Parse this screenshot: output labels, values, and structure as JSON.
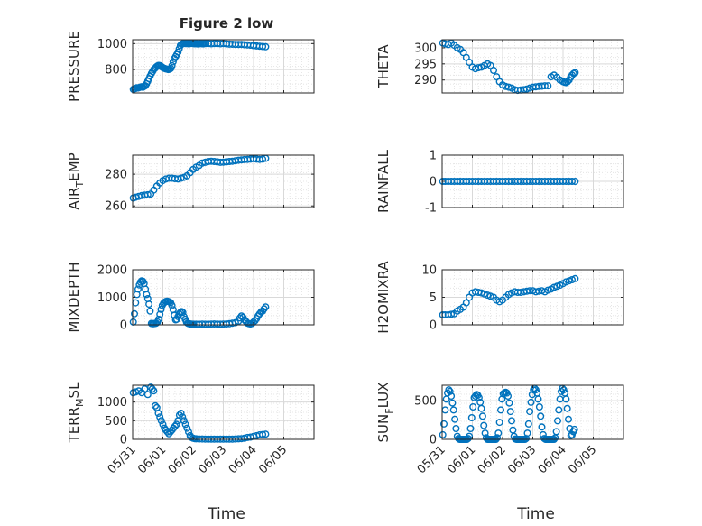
{
  "figure": {
    "title": "Figure 2 low",
    "xlabel": "Time",
    "marker_color": "#0072BD",
    "grid_color": "#d9d9d9",
    "axis_color": "#262626"
  },
  "chart_data": [
    {
      "type": "scatter",
      "ylabel": "PRESSURE",
      "ylim": [
        620,
        1030
      ],
      "yticks": [
        800,
        1000
      ],
      "xlim": [
        0,
        6
      ],
      "show_xticklabels": false,
      "grid": true,
      "x": [
        0.02,
        0.06,
        0.1,
        0.14,
        0.18,
        0.22,
        0.26,
        0.3,
        0.34,
        0.38,
        0.42,
        0.46,
        0.5,
        0.54,
        0.58,
        0.62,
        0.66,
        0.7,
        0.74,
        0.78,
        0.82,
        0.86,
        0.9,
        0.94,
        0.98,
        1.02,
        1.06,
        1.1,
        1.14,
        1.18,
        1.22,
        1.26,
        1.3,
        1.34,
        1.38,
        1.42,
        1.46,
        1.5,
        1.54,
        1.58,
        1.62,
        1.66,
        1.7,
        1.74,
        1.78,
        1.82,
        1.86,
        1.9,
        1.94,
        1.98,
        2.02,
        2.06,
        2.1,
        2.14,
        2.18,
        2.22,
        2.26,
        2.3,
        2.34,
        2.38,
        2.42,
        2.5,
        2.6,
        2.7,
        2.8,
        2.9,
        3.0,
        3.1,
        3.2,
        3.3,
        3.4,
        3.5,
        3.6,
        3.7,
        3.8,
        3.9,
        4.0,
        4.1,
        4.2,
        4.3,
        4.4
      ],
      "y": [
        648,
        652,
        655,
        660,
        658,
        662,
        665,
        668,
        664,
        670,
        675,
        690,
        710,
        730,
        750,
        770,
        785,
        800,
        810,
        820,
        828,
        832,
        830,
        825,
        818,
        812,
        808,
        805,
        803,
        800,
        802,
        808,
        830,
        860,
        885,
        900,
        915,
        935,
        960,
        985,
        995,
        1000,
        1002,
        1000,
        1001,
        1000,
        999,
        1000,
        1002,
        1001,
        1000,
        999,
        1000,
        998,
        997,
        1000,
        1001,
        999,
        998,
        1000,
        1001,
        1000,
        999,
        1000,
        1000,
        999,
        1000,
        998,
        996,
        995,
        994,
        993,
        994,
        992,
        990,
        988,
        985,
        982,
        980,
        978,
        976
      ]
    },
    {
      "type": "scatter",
      "ylabel": "THETA",
      "ylim": [
        286,
        302.5
      ],
      "yticks": [
        290,
        295,
        300
      ],
      "xlim": [
        0,
        6
      ],
      "show_xticklabels": false,
      "grid": true,
      "x": [
        0.02,
        0.1,
        0.2,
        0.3,
        0.4,
        0.5,
        0.6,
        0.7,
        0.8,
        0.9,
        1.0,
        1.1,
        1.2,
        1.3,
        1.4,
        1.5,
        1.6,
        1.7,
        1.8,
        1.9,
        2.0,
        2.1,
        2.2,
        2.3,
        2.4,
        2.5,
        2.6,
        2.7,
        2.8,
        2.9,
        3.0,
        3.1,
        3.2,
        3.3,
        3.4,
        3.5,
        3.6,
        3.7,
        3.8,
        3.9,
        4.0,
        4.05,
        4.1,
        4.15,
        4.2,
        4.25,
        4.3,
        4.35,
        4.4
      ],
      "y": [
        301.5,
        301.2,
        301.0,
        301.5,
        300.8,
        300.0,
        299.5,
        298.5,
        297.0,
        295.5,
        294.0,
        293.5,
        293.8,
        294.0,
        294.5,
        295.0,
        294.5,
        293.0,
        291.0,
        289.5,
        288.5,
        288.0,
        287.8,
        287.5,
        287.0,
        286.8,
        286.9,
        287.0,
        287.2,
        287.5,
        287.8,
        287.9,
        288.0,
        288.1,
        288.2,
        288.2,
        291.0,
        291.5,
        290.8,
        290.0,
        289.5,
        289.3,
        289.2,
        289.5,
        290.0,
        290.8,
        291.5,
        292.0,
        292.3
      ]
    },
    {
      "type": "scatter",
      "ylabel": "AIR_TEMP",
      "ylim": [
        259,
        292
      ],
      "yticks": [
        260,
        280
      ],
      "xlim": [
        0,
        6
      ],
      "show_xticklabels": false,
      "grid": true,
      "x": [
        0.02,
        0.1,
        0.2,
        0.3,
        0.4,
        0.5,
        0.6,
        0.7,
        0.8,
        0.9,
        1.0,
        1.1,
        1.2,
        1.3,
        1.4,
        1.5,
        1.6,
        1.7,
        1.8,
        1.9,
        2.0,
        2.1,
        2.2,
        2.3,
        2.4,
        2.5,
        2.6,
        2.7,
        2.8,
        2.9,
        3.0,
        3.1,
        3.2,
        3.3,
        3.4,
        3.5,
        3.6,
        3.7,
        3.8,
        3.9,
        4.0,
        4.1,
        4.2,
        4.3,
        4.4
      ],
      "y": [
        265.0,
        265.5,
        266.0,
        266.5,
        266.8,
        267.0,
        267.5,
        270.0,
        272.5,
        274.5,
        276.0,
        277.0,
        277.5,
        277.5,
        277.2,
        277.0,
        277.5,
        278.0,
        279.0,
        281.0,
        283.0,
        284.5,
        285.5,
        287.0,
        287.5,
        288.0,
        288.2,
        288.0,
        287.8,
        287.5,
        287.6,
        287.8,
        288.0,
        288.2,
        288.5,
        288.8,
        289.0,
        289.2,
        289.3,
        289.5,
        289.8,
        289.5,
        289.3,
        289.5,
        290.0
      ]
    },
    {
      "type": "scatter",
      "ylabel": "RAINFALL",
      "ylim": [
        -1,
        1
      ],
      "yticks": [
        -1,
        0,
        1
      ],
      "xlim": [
        0,
        6
      ],
      "show_xticklabels": false,
      "grid": true,
      "x": [
        0.02,
        0.1,
        0.2,
        0.3,
        0.4,
        0.5,
        0.6,
        0.7,
        0.8,
        0.9,
        1.0,
        1.1,
        1.2,
        1.3,
        1.4,
        1.5,
        1.6,
        1.7,
        1.8,
        1.9,
        2.0,
        2.1,
        2.2,
        2.3,
        2.4,
        2.5,
        2.6,
        2.7,
        2.8,
        2.9,
        3.0,
        3.1,
        3.2,
        3.3,
        3.4,
        3.5,
        3.6,
        3.7,
        3.8,
        3.9,
        4.0,
        4.1,
        4.2,
        4.3,
        4.4
      ],
      "y": [
        0,
        0,
        0,
        0,
        0,
        0,
        0,
        0,
        0,
        0,
        0,
        0,
        0,
        0,
        0,
        0,
        0,
        0,
        0,
        0,
        0,
        0,
        0,
        0,
        0,
        0,
        0,
        0,
        0,
        0,
        0,
        0,
        0,
        0,
        0,
        0,
        0,
        0,
        0,
        0,
        0,
        0,
        0,
        0,
        0
      ]
    },
    {
      "type": "scatter",
      "ylabel": "MIXDEPTH",
      "ylim": [
        0,
        2000
      ],
      "yticks": [
        0,
        1000,
        2000
      ],
      "xlim": [
        0,
        6
      ],
      "show_xticklabels": false,
      "grid": true,
      "x": [
        0.02,
        0.06,
        0.1,
        0.14,
        0.18,
        0.22,
        0.26,
        0.3,
        0.34,
        0.38,
        0.42,
        0.46,
        0.5,
        0.54,
        0.58,
        0.62,
        0.66,
        0.7,
        0.74,
        0.78,
        0.82,
        0.86,
        0.9,
        0.94,
        0.98,
        1.02,
        1.06,
        1.1,
        1.14,
        1.18,
        1.22,
        1.26,
        1.3,
        1.34,
        1.38,
        1.42,
        1.46,
        1.5,
        1.54,
        1.58,
        1.62,
        1.66,
        1.7,
        1.74,
        1.78,
        1.82,
        1.86,
        1.9,
        1.94,
        1.98,
        2.02,
        2.1,
        2.2,
        2.3,
        2.4,
        2.5,
        2.6,
        2.7,
        2.8,
        2.9,
        3.0,
        3.1,
        3.2,
        3.3,
        3.4,
        3.5,
        3.55,
        3.6,
        3.65,
        3.7,
        3.75,
        3.8,
        3.85,
        3.9,
        3.95,
        4.0,
        4.05,
        4.1,
        4.15,
        4.2,
        4.25,
        4.3,
        4.35,
        4.4
      ],
      "y": [
        100,
        400,
        800,
        1100,
        1300,
        1450,
        1550,
        1600,
        1580,
        1500,
        1300,
        1100,
        950,
        750,
        500,
        50,
        40,
        40,
        50,
        60,
        100,
        200,
        380,
        560,
        700,
        780,
        820,
        850,
        860,
        850,
        830,
        800,
        700,
        550,
        350,
        180,
        200,
        300,
        400,
        450,
        480,
        450,
        300,
        200,
        100,
        60,
        40,
        30,
        25,
        20,
        20,
        20,
        20,
        25,
        20,
        20,
        25,
        30,
        25,
        20,
        25,
        30,
        40,
        60,
        80,
        130,
        250,
        320,
        270,
        180,
        120,
        60,
        40,
        30,
        50,
        100,
        150,
        230,
        320,
        400,
        470,
        500,
        580,
        650
      ]
    },
    {
      "type": "scatter",
      "ylabel": "H2OMIXRA",
      "ylim": [
        0,
        10
      ],
      "yticks": [
        0,
        5,
        10
      ],
      "xlim": [
        0,
        6
      ],
      "show_xticklabels": false,
      "grid": true,
      "x": [
        0.02,
        0.1,
        0.2,
        0.3,
        0.4,
        0.5,
        0.6,
        0.7,
        0.8,
        0.9,
        1.0,
        1.1,
        1.2,
        1.3,
        1.4,
        1.5,
        1.6,
        1.7,
        1.8,
        1.9,
        2.0,
        2.1,
        2.2,
        2.3,
        2.4,
        2.5,
        2.6,
        2.7,
        2.8,
        2.9,
        3.0,
        3.1,
        3.2,
        3.3,
        3.4,
        3.5,
        3.6,
        3.7,
        3.8,
        3.9,
        4.0,
        4.1,
        4.2,
        4.3,
        4.4
      ],
      "y": [
        1.8,
        1.8,
        1.8,
        1.9,
        2.0,
        2.5,
        2.8,
        3.2,
        4.0,
        5.0,
        5.8,
        6.0,
        5.9,
        5.8,
        5.6,
        5.4,
        5.2,
        5.0,
        4.5,
        4.2,
        4.5,
        5.0,
        5.5,
        5.8,
        6.0,
        5.9,
        5.9,
        6.0,
        6.1,
        6.2,
        6.2,
        6.0,
        6.1,
        6.2,
        6.0,
        6.3,
        6.5,
        6.8,
        7.0,
        7.2,
        7.5,
        7.8,
        8.0,
        8.2,
        8.4
      ]
    },
    {
      "type": "scatter",
      "ylabel": "TERR_MSL",
      "ylim": [
        0,
        1450
      ],
      "yticks": [
        0,
        500,
        1000
      ],
      "xlim": [
        0,
        6
      ],
      "xticks": [
        0,
        1,
        2,
        3,
        4,
        5
      ],
      "xticklabels": [
        "05/31",
        "06/01",
        "06/02",
        "06/03",
        "06/04",
        "06/05"
      ],
      "show_xticklabels": true,
      "grid": true,
      "x": [
        0.02,
        0.1,
        0.2,
        0.3,
        0.4,
        0.5,
        0.6,
        0.65,
        0.7,
        0.75,
        0.8,
        0.85,
        0.9,
        0.95,
        1.0,
        1.05,
        1.1,
        1.15,
        1.2,
        1.25,
        1.3,
        1.35,
        1.4,
        1.45,
        1.5,
        1.55,
        1.6,
        1.65,
        1.7,
        1.75,
        1.8,
        1.85,
        1.9,
        1.95,
        2.0,
        2.05,
        2.1,
        2.2,
        2.3,
        2.4,
        2.5,
        2.6,
        2.7,
        2.8,
        2.9,
        3.0,
        3.1,
        3.2,
        3.3,
        3.4,
        3.5,
        3.6,
        3.7,
        3.8,
        3.9,
        4.0,
        4.1,
        4.2,
        4.3,
        4.4
      ],
      "y": [
        1250,
        1270,
        1300,
        1250,
        1350,
        1200,
        1400,
        1350,
        1300,
        900,
        850,
        700,
        600,
        500,
        400,
        300,
        250,
        200,
        150,
        200,
        250,
        300,
        350,
        400,
        500,
        650,
        700,
        600,
        500,
        400,
        300,
        200,
        100,
        50,
        30,
        20,
        15,
        10,
        10,
        8,
        5,
        5,
        5,
        5,
        5,
        5,
        5,
        5,
        5,
        10,
        15,
        20,
        30,
        50,
        60,
        80,
        100,
        120,
        130,
        140
      ]
    },
    {
      "type": "scatter",
      "ylabel": "SUN_FLUX",
      "ylim": [
        0,
        700
      ],
      "yticks": [
        0,
        500
      ],
      "xlim": [
        0,
        6
      ],
      "xticks": [
        0,
        1,
        2,
        3,
        4,
        5
      ],
      "xticklabels": [
        "05/31",
        "06/01",
        "06/02",
        "06/03",
        "06/04",
        "06/05"
      ],
      "show_xticklabels": true,
      "grid": true,
      "x": [
        0.02,
        0.06,
        0.1,
        0.14,
        0.18,
        0.22,
        0.26,
        0.3,
        0.34,
        0.38,
        0.42,
        0.46,
        0.5,
        0.54,
        0.58,
        0.62,
        0.66,
        0.7,
        0.74,
        0.78,
        0.82,
        0.86,
        0.9,
        0.94,
        0.98,
        1.02,
        1.06,
        1.1,
        1.14,
        1.18,
        1.22,
        1.26,
        1.3,
        1.34,
        1.38,
        1.42,
        1.46,
        1.5,
        1.54,
        1.58,
        1.62,
        1.66,
        1.7,
        1.74,
        1.78,
        1.82,
        1.86,
        1.9,
        1.94,
        1.98,
        2.02,
        2.06,
        2.1,
        2.14,
        2.18,
        2.22,
        2.26,
        2.3,
        2.34,
        2.38,
        2.42,
        2.46,
        2.5,
        2.54,
        2.58,
        2.62,
        2.66,
        2.7,
        2.74,
        2.78,
        2.82,
        2.86,
        2.9,
        2.94,
        2.98,
        3.02,
        3.06,
        3.1,
        3.14,
        3.18,
        3.22,
        3.26,
        3.3,
        3.34,
        3.38,
        3.42,
        3.46,
        3.5,
        3.54,
        3.58,
        3.62,
        3.66,
        3.7,
        3.74,
        3.78,
        3.82,
        3.86,
        3.9,
        3.94,
        3.98,
        4.02,
        4.06,
        4.1,
        4.14,
        4.18,
        4.22,
        4.26,
        4.3,
        4.34,
        4.38
      ],
      "y": [
        60,
        200,
        380,
        520,
        600,
        640,
        620,
        560,
        470,
        380,
        260,
        140,
        40,
        10,
        0,
        0,
        0,
        0,
        0,
        0,
        0,
        10,
        40,
        140,
        280,
        420,
        540,
        560,
        580,
        570,
        540,
        480,
        400,
        300,
        180,
        80,
        20,
        0,
        0,
        0,
        0,
        0,
        0,
        0,
        0,
        20,
        80,
        220,
        380,
        520,
        590,
        600,
        610,
        600,
        560,
        470,
        360,
        240,
        120,
        40,
        5,
        0,
        0,
        0,
        0,
        0,
        0,
        0,
        0,
        10,
        80,
        200,
        360,
        480,
        580,
        640,
        660,
        640,
        600,
        520,
        420,
        300,
        160,
        60,
        10,
        0,
        0,
        0,
        0,
        0,
        0,
        0,
        0,
        20,
        100,
        240,
        380,
        520,
        620,
        660,
        640,
        600,
        520,
        400,
        260,
        140,
        50,
        60,
        100,
        130
      ]
    }
  ]
}
